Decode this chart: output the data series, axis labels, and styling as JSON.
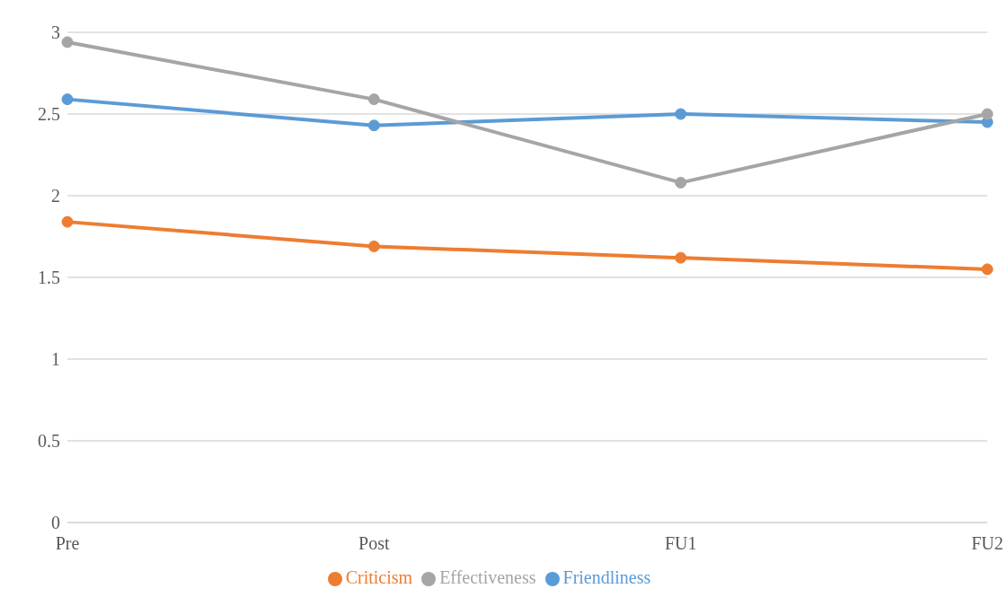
{
  "chart_data": {
    "type": "line",
    "categories": [
      "Pre",
      "Post",
      "FU1",
      "FU2"
    ],
    "series": [
      {
        "name": "Friendliness",
        "color": "#5b9bd5",
        "values": [
          2.59,
          2.43,
          2.5,
          2.45
        ]
      },
      {
        "name": "Criticism",
        "color": "#ed7d31",
        "values": [
          1.84,
          1.69,
          1.62,
          1.55
        ]
      },
      {
        "name": "Effectiveness",
        "color": "#a5a5a5",
        "values": [
          2.94,
          2.59,
          2.08,
          2.5
        ]
      }
    ],
    "ylim": [
      0,
      3
    ],
    "yticks": [
      0,
      0.5,
      1,
      1.5,
      2,
      2.5,
      3
    ],
    "grid": "y",
    "legend": "bottom",
    "marker": "circle",
    "line_style": "solid"
  }
}
